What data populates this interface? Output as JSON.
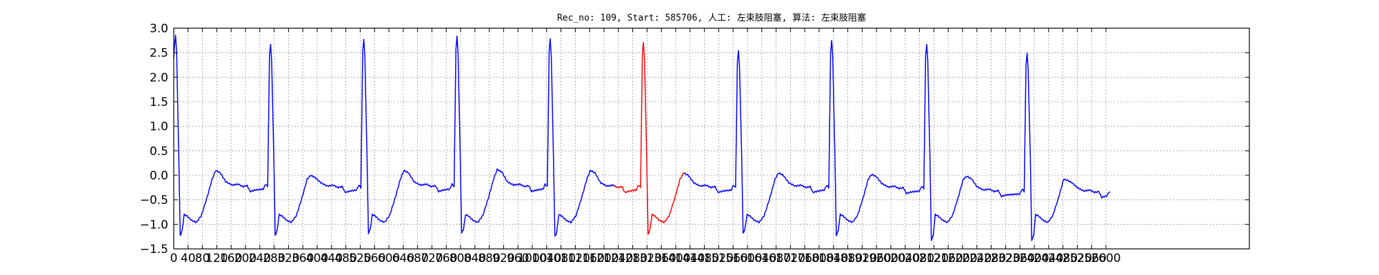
{
  "chart_data": {
    "type": "line",
    "title": "Rec_no: 109, Start: 585706, 人工: 左束肢阻塞, 算法: 左束肢阻塞",
    "xlabel": "",
    "ylabel": "",
    "xlim": [
      0,
      3000
    ],
    "ylim": [
      -1.5,
      3.0
    ],
    "grid": true,
    "x_tick_labels": [
      "0",
      "40",
      "80",
      "120",
      "160",
      "200",
      "240",
      "280",
      "320",
      "360",
      "400",
      "440",
      "480",
      "520",
      "560",
      "600",
      "640",
      "680",
      "720",
      "760",
      "800",
      "840",
      "880",
      "920",
      "960",
      "1000",
      "1040",
      "1080",
      "1120",
      "1160",
      "1200",
      "1240",
      "1280",
      "1320",
      "1360",
      "1400",
      "1440",
      "1480",
      "1520",
      "1560",
      "1600",
      "1640",
      "1680",
      "1720",
      "1760",
      "1800",
      "1840",
      "1880",
      "1920",
      "1960",
      "2000",
      "2040",
      "2080",
      "2120",
      "2160",
      "2200",
      "2240",
      "2280",
      "2320",
      "2360",
      "2400",
      "2440",
      "2480",
      "2520",
      "2560",
      "2600"
    ],
    "y_tick_labels": [
      "3.0",
      "2.5",
      "2.0",
      "1.5",
      "1.0",
      "0.5",
      "0.0",
      "−0.5",
      "−1.0",
      "−1.5"
    ],
    "y_ticks": [
      3.0,
      2.5,
      2.0,
      1.5,
      1.0,
      0.5,
      0.0,
      -0.5,
      -1.0,
      -1.5
    ],
    "beats": {
      "peak_positions": [
        5,
        270,
        530,
        790,
        1050,
        1310,
        1575,
        1835,
        2100,
        2380
      ],
      "peak_values": [
        2.87,
        2.68,
        2.78,
        2.83,
        2.78,
        2.72,
        2.55,
        2.76,
        2.68,
        2.5
      ],
      "baseline_values": [
        -0.18,
        -0.2,
        -0.18,
        -0.18,
        -0.2,
        -0.2,
        -0.2,
        -0.22,
        -0.28,
        -0.3
      ],
      "s_trough_values": [
        -1.22,
        -1.22,
        -1.18,
        -1.18,
        -1.25,
        -1.2,
        -1.18,
        -1.22,
        -1.32,
        -1.32
      ],
      "t_peak_values": [
        0.1,
        0.0,
        0.1,
        0.12,
        0.1,
        0.05,
        0.05,
        0.02,
        -0.02,
        -0.1
      ],
      "end_x": 2610,
      "end_value": -0.33
    },
    "series": [
      {
        "color": "#0000ff",
        "x_range": [
          0,
          1230
        ]
      },
      {
        "color": "#ff0000",
        "x_range": [
          1230,
          1425
        ]
      },
      {
        "color": "#0000ff",
        "x_range": [
          1425,
          2610
        ]
      }
    ]
  }
}
